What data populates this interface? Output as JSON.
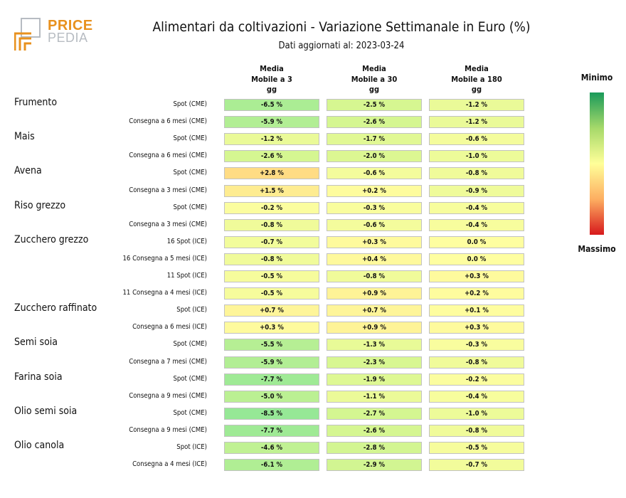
{
  "brand": {
    "price": "PRICE",
    "pedia": "PEDIA"
  },
  "colors": {
    "logo_orange": "#e8911e",
    "logo_grey": "#b7bcc2",
    "legend_top": "#1a9a5a",
    "legend_mid": "#ffff99",
    "legend_bottom": "#d7191c"
  },
  "chart_data": {
    "type": "table",
    "title": "Alimentari da coltivazioni - Variazione Settimanale in Euro (%)",
    "subtitle": "Dati aggiornati al: 2023-03-24",
    "columns": [
      "Media\nMobile a 3\ngg",
      "Media\nMobile a 30\ngg",
      "Media\nMobile a 180\ngg"
    ],
    "legend": {
      "min_label": "Minimo",
      "max_label": "Massimo"
    },
    "rows": [
      {
        "group": "Frumento",
        "label": "Spot (CME)",
        "values": [
          "-6.5 %",
          "-2.5 %",
          "-1.2 %"
        ],
        "num": [
          -6.5,
          -2.5,
          -1.2
        ]
      },
      {
        "group": "",
        "label": "Consegna a 6 mesi (CME)",
        "values": [
          "-5.9 %",
          "-2.6 %",
          "-1.2 %"
        ],
        "num": [
          -5.9,
          -2.6,
          -1.2
        ]
      },
      {
        "group": "Mais",
        "label": "Spot (CME)",
        "values": [
          "-1.2 %",
          "-1.7 %",
          "-0.6 %"
        ],
        "num": [
          -1.2,
          -1.7,
          -0.6
        ]
      },
      {
        "group": "",
        "label": "Consegna a 6 mesi (CME)",
        "values": [
          "-2.6 %",
          "-2.0 %",
          "-1.0 %"
        ],
        "num": [
          -2.6,
          -2.0,
          -1.0
        ]
      },
      {
        "group": "Avena",
        "label": "Spot (CME)",
        "values": [
          "+2.8 %",
          "-0.6 %",
          "-0.8 %"
        ],
        "num": [
          2.8,
          -0.6,
          -0.8
        ]
      },
      {
        "group": "",
        "label": "Consegna a 3 mesi (CME)",
        "values": [
          "+1.5 %",
          "+0.2 %",
          "-0.9 %"
        ],
        "num": [
          1.5,
          0.2,
          -0.9
        ]
      },
      {
        "group": "Riso grezzo",
        "label": "Spot (CME)",
        "values": [
          "-0.2 %",
          "-0.3 %",
          "-0.4 %"
        ],
        "num": [
          -0.2,
          -0.3,
          -0.4
        ]
      },
      {
        "group": "",
        "label": "Consegna a 3 mesi (CME)",
        "values": [
          "-0.8 %",
          "-0.6 %",
          "-0.4 %"
        ],
        "num": [
          -0.8,
          -0.6,
          -0.4
        ]
      },
      {
        "group": "Zucchero grezzo",
        "label": "16 Spot (ICE)",
        "values": [
          "-0.7 %",
          "+0.3 %",
          "0.0 %"
        ],
        "num": [
          -0.7,
          0.3,
          0.0
        ]
      },
      {
        "group": "",
        "label": "16 Consegna a 5 mesi (ICE)",
        "values": [
          "-0.8 %",
          "+0.4 %",
          "0.0 %"
        ],
        "num": [
          -0.8,
          0.4,
          0.0
        ]
      },
      {
        "group": "",
        "label": "11 Spot (ICE)",
        "values": [
          "-0.5 %",
          "-0.8 %",
          "+0.3 %"
        ],
        "num": [
          -0.5,
          -0.8,
          0.3
        ]
      },
      {
        "group": "",
        "label": "11 Consegna a 4 mesi (ICE)",
        "values": [
          "-0.5 %",
          "+0.9 %",
          "+0.2 %"
        ],
        "num": [
          -0.5,
          0.9,
          0.2
        ]
      },
      {
        "group": "Zucchero raffinato",
        "label": "Spot (ICE)",
        "values": [
          "+0.7 %",
          "+0.7 %",
          "+0.1 %"
        ],
        "num": [
          0.7,
          0.7,
          0.1
        ]
      },
      {
        "group": "",
        "label": "Consegna a 6 mesi (ICE)",
        "values": [
          "+0.3 %",
          "+0.9 %",
          "+0.3 %"
        ],
        "num": [
          0.3,
          0.9,
          0.3
        ]
      },
      {
        "group": "Semi soia",
        "label": "Spot (CME)",
        "values": [
          "-5.5 %",
          "-1.3 %",
          "-0.3 %"
        ],
        "num": [
          -5.5,
          -1.3,
          -0.3
        ]
      },
      {
        "group": "",
        "label": "Consegna a 7 mesi (CME)",
        "values": [
          "-5.9 %",
          "-2.3 %",
          "-0.8 %"
        ],
        "num": [
          -5.9,
          -2.3,
          -0.8
        ]
      },
      {
        "group": "Farina soia",
        "label": "Spot (CME)",
        "values": [
          "-7.7 %",
          "-1.9 %",
          "-0.2 %"
        ],
        "num": [
          -7.7,
          -1.9,
          -0.2
        ]
      },
      {
        "group": "",
        "label": "Consegna a 9 mesi (CME)",
        "values": [
          "-5.0 %",
          "-1.1 %",
          "-0.4 %"
        ],
        "num": [
          -5.0,
          -1.1,
          -0.4
        ]
      },
      {
        "group": "Olio semi soia",
        "label": "Spot (CME)",
        "values": [
          "-8.5 %",
          "-2.7 %",
          "-1.0 %"
        ],
        "num": [
          -8.5,
          -2.7,
          -1.0
        ]
      },
      {
        "group": "",
        "label": "Consegna a 9 mesi (CME)",
        "values": [
          "-7.7 %",
          "-2.6 %",
          "-0.8 %"
        ],
        "num": [
          -7.7,
          -2.6,
          -0.8
        ]
      },
      {
        "group": "Olio canola",
        "label": "Spot (ICE)",
        "values": [
          "-4.6 %",
          "-2.8 %",
          "-0.5 %"
        ],
        "num": [
          -4.6,
          -2.8,
          -0.5
        ]
      },
      {
        "group": "",
        "label": "Consegna a 4 mesi (ICE)",
        "values": [
          "-6.1 %",
          "-2.9 %",
          "-0.7 %"
        ],
        "num": [
          -6.1,
          -2.9,
          -0.7
        ]
      }
    ]
  }
}
